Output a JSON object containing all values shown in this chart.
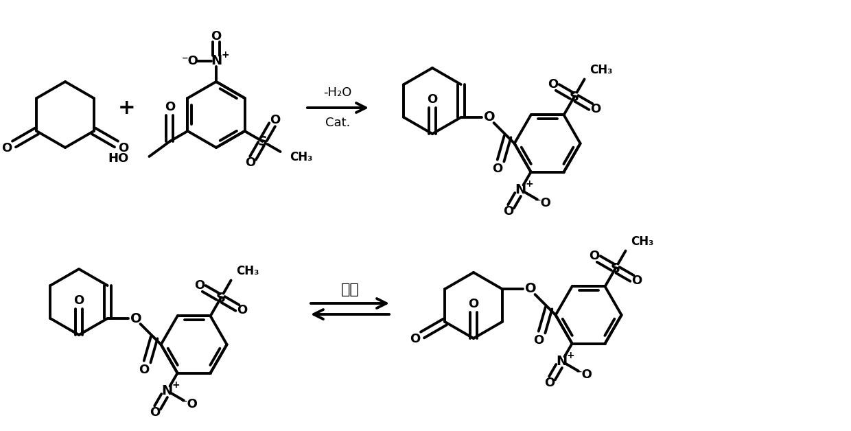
{
  "bg": "#ffffff",
  "lc": "#000000",
  "lw": 2.8,
  "fig_w": 12.4,
  "fig_h": 6.28,
  "dpi": 100,
  "arrow1_top": "-H₂O",
  "arrow1_bot": "Cat.",
  "arrow2": "重排"
}
